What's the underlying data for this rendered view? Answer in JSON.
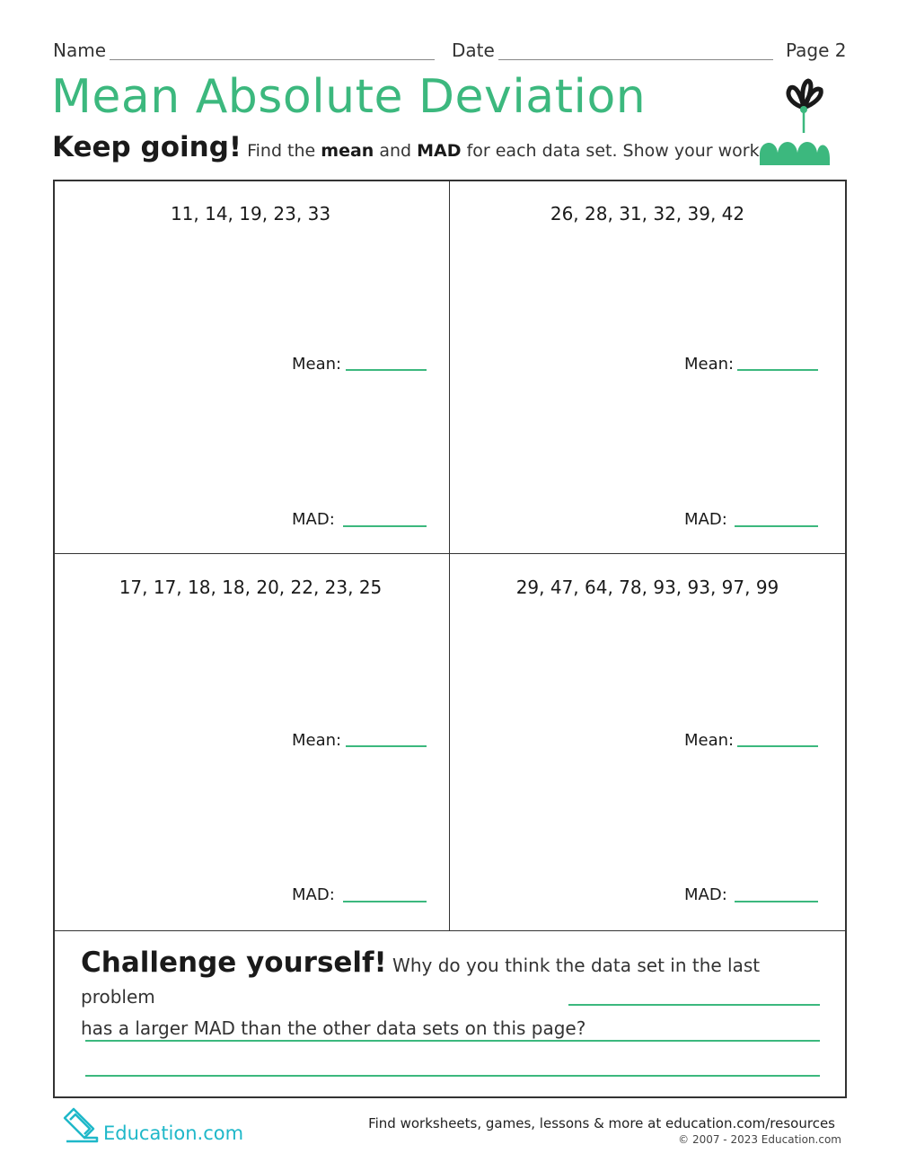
{
  "header": {
    "name_label": "Name",
    "date_label": "Date",
    "page_label": "Page 2"
  },
  "title": "Mean Absolute Deviation",
  "subtitle": {
    "lead": "Keep going!",
    "part1": " Find the ",
    "bold1": "mean",
    "part2": " and ",
    "bold2": "MAD",
    "part3": " for each data set. Show your work."
  },
  "problems": [
    {
      "data_set": "11, 14, 19, 23, 33",
      "mean_label": "Mean:",
      "mad_label": "MAD:"
    },
    {
      "data_set": "26, 28, 31, 32, 39, 42",
      "mean_label": "Mean:",
      "mad_label": "MAD:"
    },
    {
      "data_set": "17, 17, 18, 18, 20, 22, 23, 25",
      "mean_label": "Mean:",
      "mad_label": "MAD:"
    },
    {
      "data_set": "29, 47, 64, 78, 93, 93, 97, 99",
      "mean_label": "Mean:",
      "mad_label": "MAD:"
    }
  ],
  "challenge": {
    "lead": "Challenge yourself!",
    "line1": " Why do you think the data set in the last problem",
    "line2": "has a larger MAD than the other data sets on this page?"
  },
  "footer": {
    "logo": "Education.com",
    "tagline": "Find worksheets, games, lessons & more at education.com/resources",
    "copyright": "© 2007 - 2023 Education.com"
  },
  "colors": {
    "accent": "#3cb87e",
    "logo": "#1fb8c9"
  },
  "icons": {
    "decor": "flower-grass-icon",
    "logo": "education-logo-icon"
  }
}
